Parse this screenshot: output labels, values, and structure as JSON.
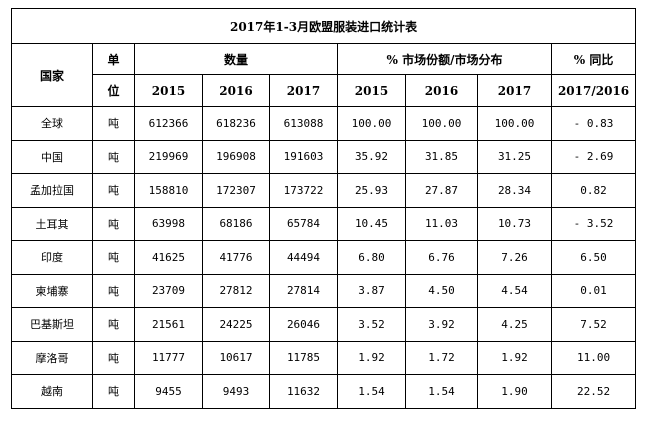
{
  "title": "2017年1-3月欧盟服装进口统计表",
  "header": {
    "country": "国家",
    "unit_top": "单",
    "unit_bottom": "位",
    "quantity": "数量",
    "share": "% 市场份额/市场分布",
    "yoy": "% 同比",
    "years": [
      "2015",
      "2016",
      "2017"
    ],
    "share_years": [
      "2015",
      "2016",
      "2017"
    ],
    "yoy_period": "2017/2016"
  },
  "rows": [
    {
      "country": "全球",
      "unit": "吨",
      "q2015": "612366",
      "q2016": "618236",
      "q2017": "613088",
      "s2015": "100.00",
      "s2016": "100.00",
      "s2017": "100.00",
      "yoy": "- 0.83"
    },
    {
      "country": "中国",
      "unit": "吨",
      "q2015": "219969",
      "q2016": "196908",
      "q2017": "191603",
      "s2015": "35.92",
      "s2016": "31.85",
      "s2017": "31.25",
      "yoy": "- 2.69"
    },
    {
      "country": "孟加拉国",
      "unit": "吨",
      "q2015": "158810",
      "q2016": "172307",
      "q2017": "173722",
      "s2015": "25.93",
      "s2016": "27.87",
      "s2017": "28.34",
      "yoy": "0.82"
    },
    {
      "country": "土耳其",
      "unit": "吨",
      "q2015": "63998",
      "q2016": "68186",
      "q2017": "65784",
      "s2015": "10.45",
      "s2016": "11.03",
      "s2017": "10.73",
      "yoy": "- 3.52"
    },
    {
      "country": "印度",
      "unit": "吨",
      "q2015": "41625",
      "q2016": "41776",
      "q2017": "44494",
      "s2015": "6.80",
      "s2016": "6.76",
      "s2017": "7.26",
      "yoy": "6.50"
    },
    {
      "country": "柬埔寨",
      "unit": "吨",
      "q2015": "23709",
      "q2016": "27812",
      "q2017": "27814",
      "s2015": "3.87",
      "s2016": "4.50",
      "s2017": "4.54",
      "yoy": "0.01"
    },
    {
      "country": "巴基斯坦",
      "unit": "吨",
      "q2015": "21561",
      "q2016": "24225",
      "q2017": "26046",
      "s2015": "3.52",
      "s2016": "3.92",
      "s2017": "4.25",
      "yoy": "7.52"
    },
    {
      "country": "摩洛哥",
      "unit": "吨",
      "q2015": "11777",
      "q2016": "10617",
      "q2017": "11785",
      "s2015": "1.92",
      "s2016": "1.72",
      "s2017": "1.92",
      "yoy": "11.00"
    },
    {
      "country": "越南",
      "unit": "吨",
      "q2015": "9455",
      "q2016": "9493",
      "q2017": "11632",
      "s2015": "1.54",
      "s2016": "1.54",
      "s2017": "1.90",
      "yoy": "22.52"
    }
  ]
}
